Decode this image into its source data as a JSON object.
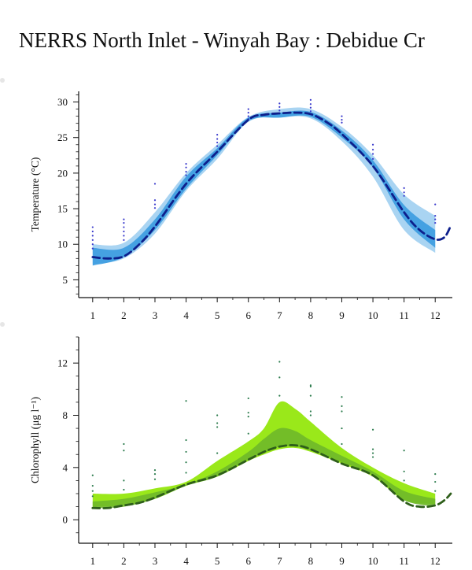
{
  "title": "NERRS North Inlet - Winyah Bay : Debidue Cr",
  "colors": {
    "temp_light": "#a9d4f2",
    "temp_mid": "#3a9be0",
    "temp_dark": "#1a78c8",
    "temp_line": "#0d1f8c",
    "temp_obs": "#3a3acc",
    "chl_light": "#9ae81a",
    "chl_mid": "#6fb82a",
    "chl_dark": "#3f7a1f",
    "chl_line": "#2e5e1a",
    "chl_obs": "#2e7d4f"
  },
  "chart_data": [
    {
      "type": "line",
      "title": "",
      "xlabel": "",
      "ylabel": "Temperature (°C)",
      "x_ticks": [
        "1",
        "2",
        "3",
        "4",
        "5",
        "6",
        "7",
        "8",
        "9",
        "10",
        "11",
        "12"
      ],
      "y_ticks": [
        "5",
        "10",
        "15",
        "20",
        "25",
        "30"
      ],
      "xlim": [
        0.55,
        12.55
      ],
      "ylim": [
        2.5,
        31.5
      ],
      "series": [
        {
          "role": "line",
          "x": [
            1,
            1.5,
            2,
            2.5,
            3,
            4,
            5,
            6,
            6.5,
            7,
            7.5,
            8,
            8.5,
            9,
            10,
            11,
            11.5,
            12,
            12.3,
            12.5
          ],
          "y": [
            8.2,
            8.0,
            8.3,
            10.0,
            12.5,
            18.5,
            23.0,
            27.5,
            28.2,
            28.4,
            28.5,
            28.3,
            27.2,
            25.5,
            21.0,
            14.5,
            12.0,
            10.7,
            11.0,
            12.6
          ]
        },
        {
          "role": "outer_band",
          "x": [
            1,
            2,
            3,
            4,
            5,
            6,
            7,
            8,
            9,
            10,
            11,
            12
          ],
          "upper": [
            10.0,
            10.2,
            14.5,
            20.0,
            24.0,
            27.9,
            29.0,
            29.0,
            26.5,
            22.5,
            17.0,
            14.0
          ],
          "lower": [
            7.2,
            8.0,
            11.5,
            17.5,
            22.0,
            27.2,
            27.8,
            27.7,
            24.5,
            19.5,
            12.0,
            8.8
          ]
        },
        {
          "role": "inner_band",
          "x": [
            1,
            2,
            3,
            4,
            5,
            6,
            7,
            8,
            9,
            10,
            11,
            12
          ],
          "upper": [
            9.5,
            9.5,
            13.5,
            19.5,
            23.5,
            27.8,
            28.5,
            28.6,
            26.0,
            21.8,
            15.5,
            12.0
          ],
          "lower": [
            7.0,
            8.2,
            12.0,
            17.8,
            22.5,
            27.3,
            27.8,
            27.9,
            25.0,
            20.8,
            13.5,
            9.5
          ]
        },
        {
          "role": "observations",
          "points": [
            [
              1,
              12.4
            ],
            [
              1,
              11.8
            ],
            [
              1,
              11.2
            ],
            [
              1,
              10.6
            ],
            [
              1,
              10.0
            ],
            [
              1,
              9.4
            ],
            [
              2,
              13.5
            ],
            [
              2,
              13.0
            ],
            [
              2,
              12.4
            ],
            [
              2,
              11.8
            ],
            [
              2,
              11.2
            ],
            [
              2,
              10.6
            ],
            [
              3,
              18.5
            ],
            [
              3,
              16.2
            ],
            [
              3,
              15.6
            ],
            [
              3,
              15.1
            ],
            [
              4,
              21.3
            ],
            [
              4,
              20.8
            ],
            [
              4,
              20.2
            ],
            [
              4,
              19.7
            ],
            [
              5,
              25.4
            ],
            [
              5,
              24.8
            ],
            [
              5,
              24.3
            ],
            [
              5,
              23.8
            ],
            [
              6,
              29.0
            ],
            [
              6,
              28.5
            ],
            [
              6,
              28.0
            ],
            [
              6,
              27.6
            ],
            [
              7,
              29.8
            ],
            [
              7,
              29.3
            ],
            [
              7,
              28.8
            ],
            [
              8,
              30.3
            ],
            [
              8,
              29.7
            ],
            [
              8,
              29.2
            ],
            [
              8,
              28.7
            ],
            [
              9,
              28.0
            ],
            [
              9,
              27.5
            ],
            [
              9,
              27.1
            ],
            [
              10,
              24.0
            ],
            [
              10,
              23.3
            ],
            [
              10,
              22.7
            ],
            [
              10,
              22.0
            ],
            [
              11,
              17.9
            ],
            [
              11,
              17.3
            ],
            [
              11,
              16.8
            ],
            [
              12,
              15.6
            ],
            [
              12,
              14.0
            ],
            [
              12,
              13.5
            ],
            [
              12,
              13.0
            ]
          ]
        }
      ]
    },
    {
      "type": "line",
      "title": "",
      "xlabel": "",
      "ylabel": "Chlorophyll (μg l⁻¹)",
      "x_ticks": [
        "1",
        "2",
        "3",
        "4",
        "5",
        "6",
        "7",
        "8",
        "9",
        "10",
        "11",
        "12"
      ],
      "y_ticks": [
        "0",
        "4",
        "8",
        "12"
      ],
      "xlim": [
        0.55,
        12.55
      ],
      "ylim": [
        -1.8,
        14.0
      ],
      "series": [
        {
          "role": "line",
          "x": [
            1,
            1.5,
            2,
            2.5,
            3,
            4,
            5,
            6,
            6.5,
            7,
            7.5,
            8,
            9,
            10,
            11,
            11.5,
            12,
            12.3,
            12.5
          ],
          "y": [
            0.9,
            0.9,
            1.1,
            1.3,
            1.7,
            2.7,
            3.4,
            4.6,
            5.2,
            5.6,
            5.7,
            5.4,
            4.3,
            3.4,
            1.4,
            1.0,
            1.1,
            1.5,
            2.0
          ]
        },
        {
          "role": "outer_band",
          "x": [
            1,
            2,
            3,
            4,
            5,
            6,
            6.5,
            7,
            7.5,
            8,
            9,
            10,
            11,
            12
          ],
          "upper": [
            2.0,
            2.0,
            2.4,
            2.9,
            4.5,
            6.0,
            7.0,
            9.0,
            8.5,
            7.5,
            5.5,
            4.0,
            2.8,
            2.0
          ],
          "lower": [
            1.0,
            1.1,
            1.6,
            2.6,
            3.3,
            4.5,
            5.0,
            5.4,
            5.5,
            5.2,
            4.3,
            3.3,
            1.5,
            1.2
          ]
        },
        {
          "role": "inner_band",
          "x": [
            1,
            2,
            3,
            4,
            5,
            6,
            6.5,
            7,
            7.5,
            8,
            9,
            10,
            11,
            12
          ],
          "upper": [
            1.4,
            1.6,
            2.1,
            2.7,
            3.7,
            5.2,
            6.2,
            7.0,
            6.8,
            6.1,
            4.9,
            3.7,
            2.2,
            1.6
          ],
          "lower": [
            0.9,
            1.0,
            1.6,
            2.6,
            3.3,
            4.6,
            5.1,
            5.6,
            5.6,
            5.3,
            4.4,
            3.4,
            1.5,
            1.0
          ]
        },
        {
          "role": "observations",
          "points": [
            [
              1,
              3.4
            ],
            [
              1,
              2.6
            ],
            [
              1,
              2.2
            ],
            [
              1,
              1.8
            ],
            [
              2,
              5.8
            ],
            [
              2,
              5.3
            ],
            [
              2,
              3.0
            ],
            [
              2,
              2.3
            ],
            [
              3,
              3.8
            ],
            [
              3,
              3.5
            ],
            [
              3,
              3.1
            ],
            [
              4,
              9.1
            ],
            [
              4,
              6.1
            ],
            [
              4,
              5.2
            ],
            [
              4,
              4.4
            ],
            [
              4,
              3.6
            ],
            [
              5,
              8.0
            ],
            [
              5,
              7.4
            ],
            [
              5,
              7.1
            ],
            [
              5,
              5.1
            ],
            [
              6,
              9.3
            ],
            [
              6,
              8.2
            ],
            [
              6,
              7.9
            ],
            [
              6,
              6.6
            ],
            [
              7,
              12.1
            ],
            [
              7,
              10.9
            ],
            [
              7,
              9.5
            ],
            [
              8,
              10.3
            ],
            [
              8,
              10.2
            ],
            [
              8,
              9.5
            ],
            [
              8,
              8.3
            ],
            [
              8,
              8.0
            ],
            [
              9,
              9.4
            ],
            [
              9,
              8.7
            ],
            [
              9,
              8.3
            ],
            [
              9,
              7.0
            ],
            [
              9,
              5.8
            ],
            [
              10,
              6.9
            ],
            [
              10,
              5.4
            ],
            [
              10,
              5.1
            ],
            [
              10,
              4.8
            ],
            [
              11,
              5.3
            ],
            [
              11,
              3.7
            ],
            [
              11,
              3.0
            ],
            [
              12,
              3.5
            ],
            [
              12,
              2.9
            ],
            [
              12,
              2.2
            ]
          ]
        }
      ]
    }
  ]
}
